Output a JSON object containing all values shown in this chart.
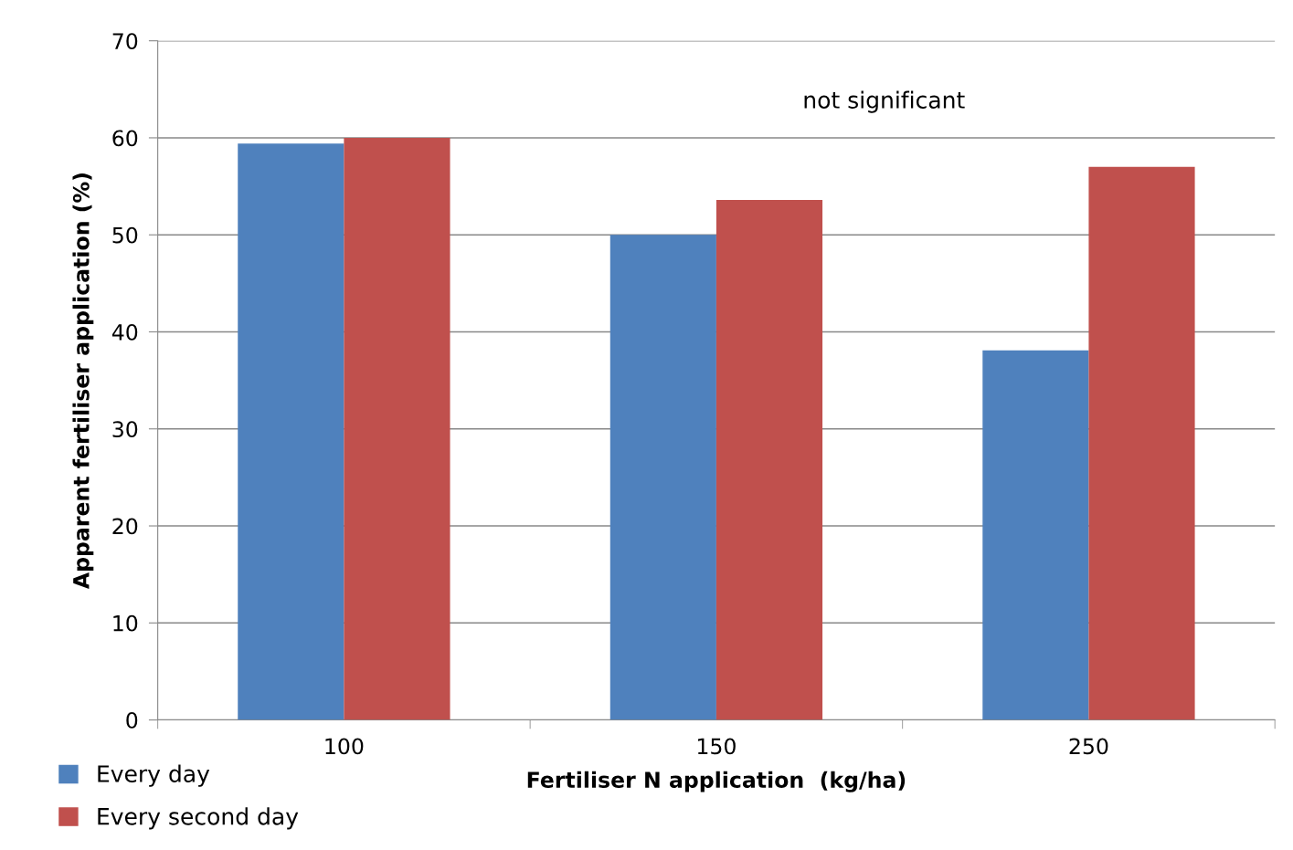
{
  "chart_data": {
    "type": "bar",
    "xlabel": "Fertiliser N application  (kg/ha)",
    "ylabel": "Apparent fertiliser application (%)",
    "categories": [
      "100",
      "150",
      "250"
    ],
    "series": [
      {
        "name": "Every day",
        "color": "#4f81bd",
        "values": [
          59.4,
          50.0,
          38.1
        ]
      },
      {
        "name": "Every second day",
        "color": "#c0504d",
        "values": [
          60.0,
          53.6,
          57.0
        ]
      }
    ],
    "ylim": [
      0,
      70
    ],
    "yticks": [
      0,
      10,
      20,
      30,
      40,
      50,
      60,
      70
    ],
    "grid": "y",
    "legend": "bottom left",
    "annotations": [
      "not significant"
    ]
  }
}
